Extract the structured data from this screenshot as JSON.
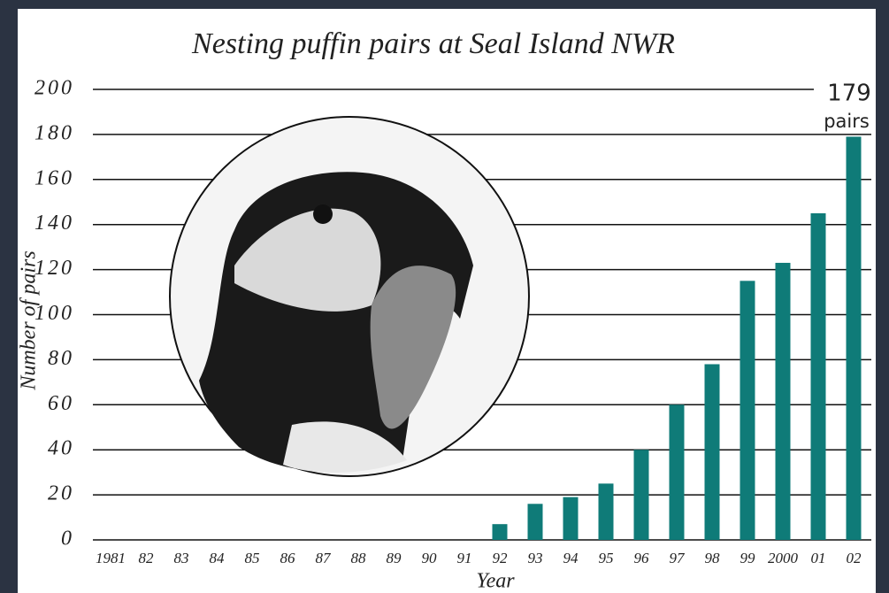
{
  "chart_data": {
    "type": "bar",
    "title": "Nesting puffin pairs at Seal Island NWR",
    "x_label": "Year",
    "y_label": "Number of pairs",
    "categories": [
      "1981",
      "82",
      "83",
      "84",
      "85",
      "86",
      "87",
      "88",
      "89",
      "90",
      "91",
      "92",
      "93",
      "94",
      "95",
      "96",
      "97",
      "98",
      "99",
      "2000",
      "01",
      "02"
    ],
    "values": [
      0,
      0,
      0,
      0,
      0,
      0,
      0,
      0,
      0,
      0,
      0,
      7,
      16,
      19,
      25,
      40,
      60,
      78,
      115,
      123,
      145,
      179
    ],
    "color": "#0f7b78",
    "ylim": [
      0,
      200
    ],
    "yticks": [
      0,
      20,
      40,
      60,
      80,
      100,
      120,
      140,
      160,
      180,
      200
    ],
    "grid": true,
    "annotation": [
      "179",
      "pairs"
    ]
  }
}
